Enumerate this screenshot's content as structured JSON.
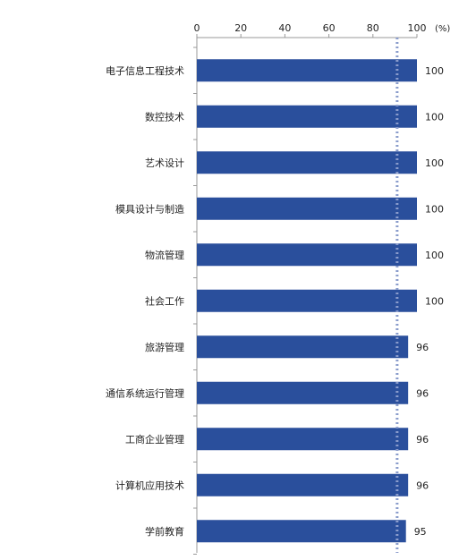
{
  "chart_data": {
    "type": "bar",
    "orientation": "horizontal",
    "categories": [
      "电子信息工程技术",
      "数控技术",
      "艺术设计",
      "模具设计与制造",
      "物流管理",
      "社会工作",
      "旅游管理",
      "通信系统运行管理",
      "工商企业管理",
      "计算机应用技术",
      "学前教育"
    ],
    "values": [
      100,
      100,
      100,
      100,
      100,
      100,
      96,
      96,
      96,
      96,
      95
    ],
    "value_labels": [
      "100",
      "100",
      "100",
      "100",
      "100",
      "100",
      "96",
      "96",
      "96",
      "96",
      "95"
    ],
    "x_ticks": [
      "0",
      "20",
      "40",
      "60",
      "80",
      "100"
    ],
    "x_unit": "(%)",
    "xlim": [
      0,
      100
    ],
    "reference_line": 91,
    "x_axis_position": "top",
    "grid": false,
    "colors": {
      "bar": "#2a4f9c",
      "reference": "#8a9ccc",
      "axis": "#999999"
    }
  }
}
